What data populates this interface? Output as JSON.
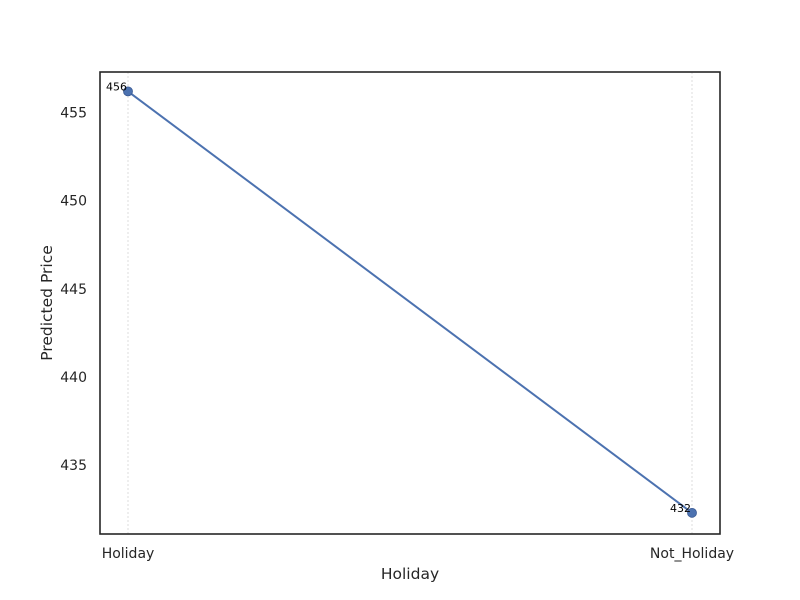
{
  "chart_data": {
    "type": "line",
    "title": "",
    "xlabel": "Holiday",
    "ylabel": "Predicted Price",
    "categories": [
      "Holiday",
      "Not_Holiday"
    ],
    "series": [
      {
        "values": [
          456.2,
          432.3
        ],
        "labels": [
          "456",
          "432"
        ],
        "color": "#4c72b0"
      }
    ],
    "ylim": [
      431.1,
      457.3
    ],
    "yticks": [
      435,
      440,
      445,
      450,
      455
    ],
    "grid": {
      "x": true,
      "y": false
    },
    "legend": "none",
    "colors": {
      "line": "#4c72b0",
      "axes_frame": "#262626",
      "grid": "#d4d4d4",
      "text": "#262626"
    }
  }
}
